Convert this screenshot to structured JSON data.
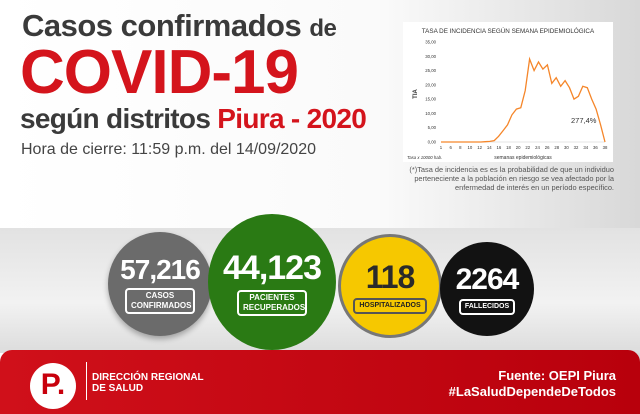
{
  "header": {
    "line1_a": "Casos confirmados",
    "line1_b": "de",
    "line2": "COVID-19",
    "line3_a": "según distritos",
    "line3_b": "Piura - 2020",
    "line4": "Hora de cierre: 11:59 p.m. del 14/09/2020"
  },
  "chart_data": {
    "type": "line",
    "title": "TASA DE INCIDENCIA SEGÚN SEMANA EPIDEMIOLÓGICA",
    "xlabel": "semanas epidemiológicas",
    "ylabel": "TIA",
    "note": "Tasa x 10000 hab.",
    "annotation": "277,4%",
    "ylim": [
      0,
      35
    ],
    "yticks": [
      "0,00",
      "5,00",
      "10,00",
      "15,00",
      "20,00",
      "25,00",
      "30,00",
      "35,00"
    ],
    "xticks": [
      "1",
      "6",
      "8",
      "10",
      "12",
      "14",
      "16",
      "18",
      "20",
      "22",
      "24",
      "26",
      "28",
      "30",
      "32",
      "34",
      "36",
      "38"
    ],
    "x": [
      1,
      2,
      3,
      4,
      5,
      6,
      7,
      8,
      9,
      10,
      11,
      12,
      13,
      14,
      15,
      16,
      17,
      18,
      19,
      20,
      21,
      22,
      23,
      24,
      25,
      26,
      27,
      28,
      29,
      30,
      31,
      32,
      33,
      34,
      35,
      36,
      37,
      38
    ],
    "values": [
      0,
      0,
      0,
      0,
      0,
      0,
      0,
      0,
      0,
      0,
      0.1,
      0.2,
      0.5,
      2,
      4,
      6,
      9.5,
      11.5,
      12,
      18,
      29,
      25,
      28,
      25.5,
      27,
      20.5,
      22.5,
      19.5,
      21.5,
      19,
      15,
      16,
      19.5,
      19,
      15,
      11.5,
      6,
      0
    ],
    "color": "#f5862a"
  },
  "chart_footnote": "(*)Tasa de incidencia es es la probabilidad de que un individuo perteneciente a la población en riesgo se vea afectado por la enfermedad de interés en un período específico.",
  "stats": [
    {
      "value": "57,216",
      "label": "CASOS CONFIRMADOS",
      "color": "#6b6b6b"
    },
    {
      "value": "44,123",
      "label": "PACIENTES RECUPERADOS",
      "color": "#2a7a14"
    },
    {
      "value": "118",
      "label": "HOSPITALIZADOS",
      "color": "#f6c800"
    },
    {
      "value": "2264",
      "label": "FALLECIDOS",
      "color": "#121212"
    }
  ],
  "footer": {
    "logo_letter": "P.",
    "org": "DIRECCIÓN REGIONAL DE SALUD",
    "source": "Fuente: OEPI Piura",
    "hashtag": "#LaSaludDependeDeTodos"
  }
}
